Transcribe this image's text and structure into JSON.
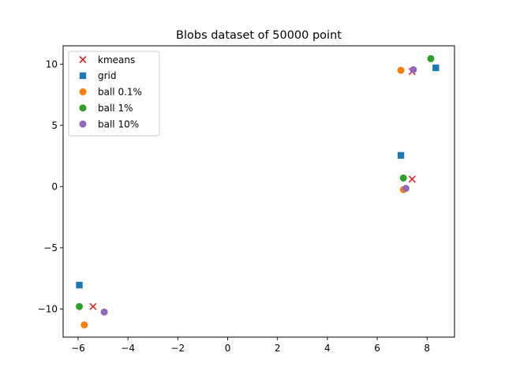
{
  "chart_data": {
    "type": "scatter",
    "title": "Blobs dataset of 50000 point",
    "xlabel": "",
    "ylabel": "",
    "xlim": [
      -6.6,
      9.1
    ],
    "ylim": [
      -12.3,
      11.5
    ],
    "xticks": [
      -6,
      -4,
      -2,
      0,
      2,
      4,
      6,
      8
    ],
    "yticks": [
      -10,
      -5,
      0,
      5,
      10
    ],
    "xtick_labels": [
      "−6",
      "−4",
      "−2",
      "0",
      "2",
      "4",
      "6",
      "8"
    ],
    "ytick_labels": [
      "−10",
      "−5",
      "0",
      "5",
      "10"
    ],
    "grid": false,
    "legend_position": "top-left",
    "series": [
      {
        "name": "kmeans",
        "marker": "x",
        "color": "#d62728",
        "points": [
          [
            7.4,
            9.4
          ],
          [
            7.4,
            0.6
          ],
          [
            -5.4,
            -9.8
          ]
        ]
      },
      {
        "name": "grid",
        "marker": "square",
        "color": "#1f77b4",
        "points": [
          [
            8.35,
            9.7
          ],
          [
            6.95,
            2.55
          ],
          [
            -5.95,
            -8.05
          ]
        ]
      },
      {
        "name": "ball 0.1%",
        "marker": "circle",
        "color": "#ff7f0e",
        "points": [
          [
            6.95,
            9.5
          ],
          [
            7.05,
            -0.25
          ],
          [
            -5.75,
            -11.3
          ]
        ]
      },
      {
        "name": "ball 1%",
        "marker": "circle",
        "color": "#2ca02c",
        "points": [
          [
            8.15,
            10.45
          ],
          [
            7.05,
            0.7
          ],
          [
            -5.95,
            -9.8
          ]
        ]
      },
      {
        "name": "ball 10%",
        "marker": "circle",
        "color": "#9467bd",
        "points": [
          [
            7.45,
            9.55
          ],
          [
            7.15,
            -0.15
          ],
          [
            -4.95,
            -10.25
          ]
        ]
      }
    ]
  }
}
